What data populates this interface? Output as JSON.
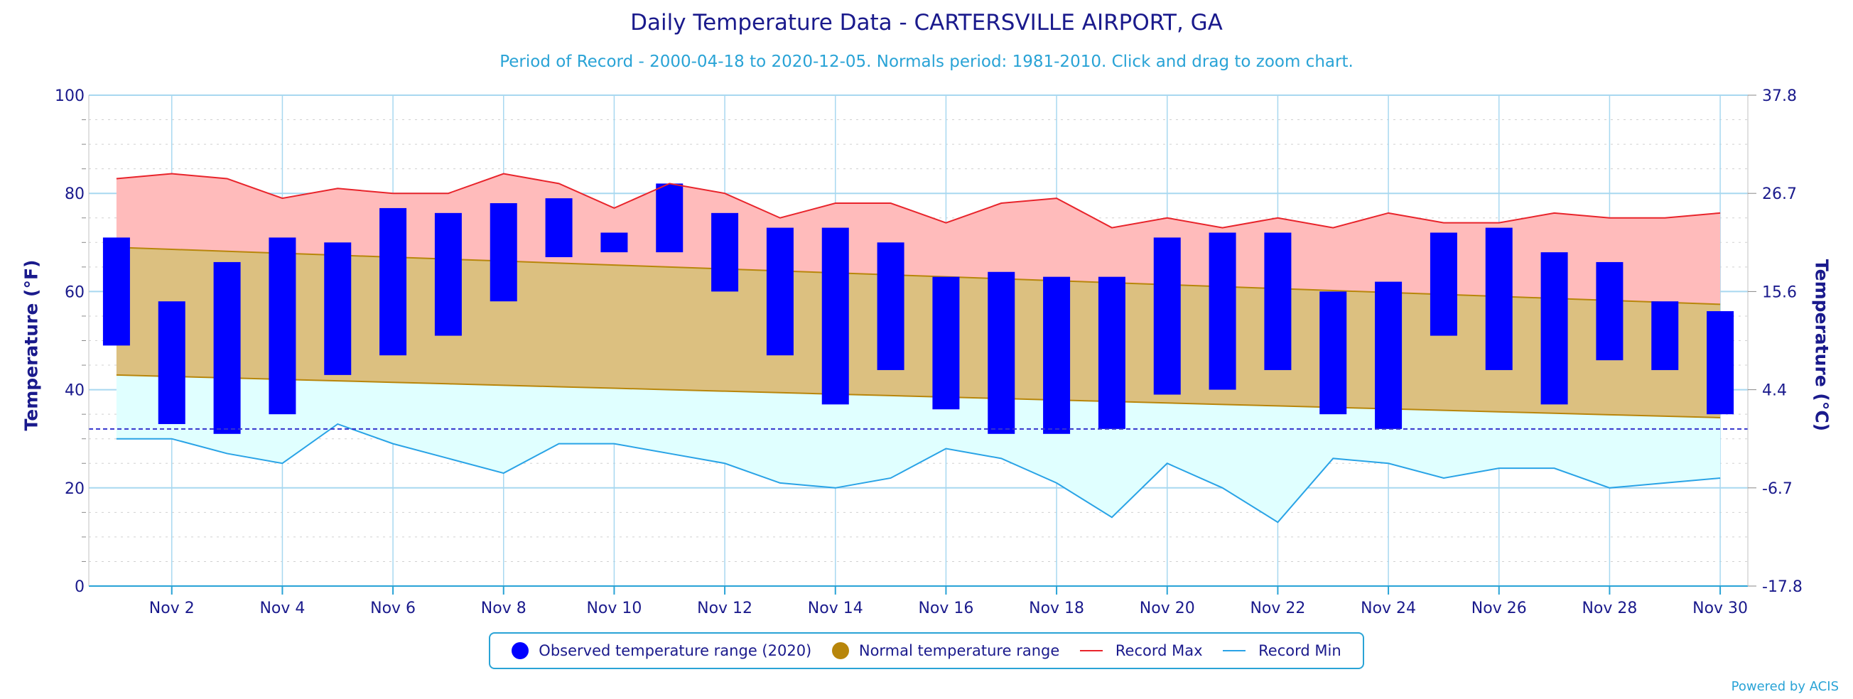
{
  "title": "Daily Temperature Data - CARTERSVILLE AIRPORT, GA",
  "subtitle": "Period of Record - 2000-04-18 to 2020-12-05. Normals period: 1981-2010. Click and drag to zoom chart.",
  "credit": "Powered by ACIS",
  "colors": {
    "observed": "#0000ff",
    "normal_fill": "#dcc080",
    "normal_line": "#b8860b",
    "record_max_fill": "#ffbbbb",
    "record_max_line": "#e8242b",
    "record_min_fill": "#e0ffff",
    "record_min_line": "#29a3e6",
    "grid": "#a8d8f0",
    "text": "#1a1a8c",
    "freeze_line": "#3333cc"
  },
  "legend": {
    "observed": "Observed temperature range (2020)",
    "normal": "Normal temperature range",
    "record_max": "Record Max",
    "record_min": "Record Min"
  },
  "chart_data": {
    "type": "bar",
    "title": "Daily Temperature Data - CARTERSVILLE AIRPORT, GA",
    "subtitle": "Period of Record - 2000-04-18 to 2020-12-05. Normals period: 1981-2010. Click and drag to zoom chart.",
    "ylabel": "Temperature (°F)",
    "ylabel_right": "Temperature (°C)",
    "ylim": [
      0,
      100
    ],
    "yticks": [
      0,
      20,
      40,
      60,
      80,
      100
    ],
    "yticks_right": [
      "-17.8",
      "-6.7",
      "4.4",
      "15.6",
      "26.7",
      "37.8"
    ],
    "xlim": [
      1,
      30
    ],
    "x": [
      1,
      2,
      3,
      4,
      5,
      6,
      7,
      8,
      9,
      10,
      11,
      12,
      13,
      14,
      15,
      16,
      17,
      18,
      19,
      20,
      21,
      22,
      23,
      24,
      25,
      26,
      27,
      28,
      29,
      30
    ],
    "x_tick_labels": [
      "Nov 2",
      "Nov 4",
      "Nov 6",
      "Nov 8",
      "Nov 10",
      "Nov 12",
      "Nov 14",
      "Nov 16",
      "Nov 18",
      "Nov 20",
      "Nov 22",
      "Nov 24",
      "Nov 26",
      "Nov 28",
      "Nov 30"
    ],
    "x_tick_days": [
      2,
      4,
      6,
      8,
      10,
      12,
      14,
      16,
      18,
      20,
      22,
      24,
      26,
      28,
      30
    ],
    "freeze_line": 32,
    "grid": true,
    "legend_position": "bottom-center",
    "series": [
      {
        "name": "Observed temperature range (2020)",
        "low": [
          49,
          33,
          31,
          35,
          43,
          47,
          51,
          58,
          67,
          68,
          68,
          60,
          47,
          37,
          44,
          36,
          31,
          31,
          32,
          39,
          40,
          44,
          35,
          32,
          51,
          44,
          37,
          46,
          44,
          35
        ],
        "high": [
          71,
          58,
          66,
          71,
          70,
          77,
          76,
          78,
          79,
          72,
          82,
          76,
          73,
          73,
          70,
          63,
          64,
          63,
          63,
          71,
          72,
          72,
          60,
          62,
          72,
          73,
          68,
          66,
          58,
          56
        ]
      },
      {
        "name": "Normal temperature range",
        "low": [
          43,
          42.7,
          42.4,
          42.1,
          41.8,
          41.5,
          41.2,
          40.9,
          40.6,
          40.3,
          40,
          39.7,
          39.4,
          39.1,
          38.8,
          38.5,
          38.2,
          37.9,
          37.6,
          37.3,
          37,
          36.7,
          36.4,
          36.1,
          35.8,
          35.5,
          35.2,
          34.9,
          34.6,
          34.3
        ],
        "high": [
          69,
          68.6,
          68.2,
          67.8,
          67.4,
          67,
          66.6,
          66.2,
          65.8,
          65.4,
          65,
          64.6,
          64.2,
          63.8,
          63.4,
          63,
          62.6,
          62.2,
          61.8,
          61.4,
          61,
          60.6,
          60.2,
          59.8,
          59.4,
          59,
          58.6,
          58.2,
          57.8,
          57.4
        ]
      },
      {
        "name": "Record Max",
        "values": [
          83,
          84,
          83,
          79,
          81,
          80,
          80,
          84,
          82,
          77,
          82,
          80,
          75,
          78,
          78,
          74,
          78,
          79,
          73,
          75,
          73,
          75,
          73,
          76,
          74,
          74,
          76,
          75,
          75,
          76
        ]
      },
      {
        "name": "Record Min",
        "values": [
          30,
          30,
          27,
          25,
          33,
          29,
          26,
          23,
          29,
          29,
          27,
          25,
          21,
          20,
          22,
          28,
          26,
          21,
          14,
          25,
          20,
          13,
          26,
          25,
          22,
          24,
          24,
          20,
          21,
          22
        ]
      }
    ]
  }
}
